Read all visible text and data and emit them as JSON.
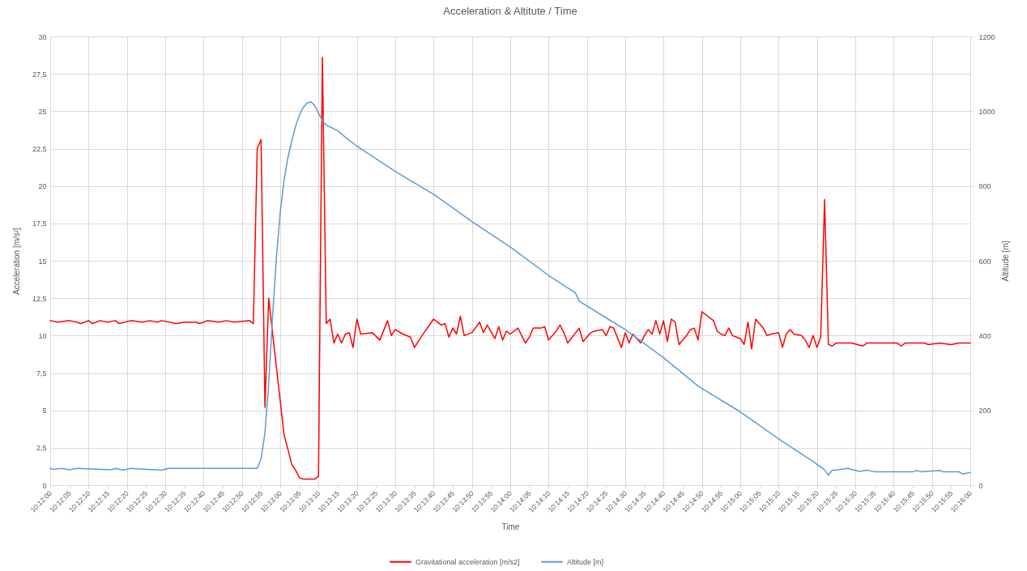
{
  "chart_data": {
    "type": "line",
    "title": "Acceleration & Altitute / Time",
    "xlabel": "Time",
    "ylabel": "Acceleration [m/s²]",
    "y2label": "Altitude [m]",
    "xlim": [
      10.2,
      10.26667
    ],
    "xticks": [
      {
        "value": 10.2,
        "label": "10:12:00"
      },
      {
        "value": 10.20139,
        "label": "10:12:05"
      },
      {
        "value": 10.20278,
        "label": "10:12:10"
      },
      {
        "value": 10.20417,
        "label": "10:12:15"
      },
      {
        "value": 10.20556,
        "label": "10:12:20"
      },
      {
        "value": 10.20694,
        "label": "10:12:25"
      },
      {
        "value": 10.20833,
        "label": "10:12:30"
      },
      {
        "value": 10.20972,
        "label": "10:12:35"
      },
      {
        "value": 10.21111,
        "label": "10:12:40"
      },
      {
        "value": 10.2125,
        "label": "10:12:45"
      },
      {
        "value": 10.21389,
        "label": "10:12:50"
      },
      {
        "value": 10.21528,
        "label": "10:12:55"
      },
      {
        "value": 10.21667,
        "label": "10:13:00"
      },
      {
        "value": 10.21806,
        "label": "10:13:05"
      },
      {
        "value": 10.21944,
        "label": "10:13:10"
      },
      {
        "value": 10.22083,
        "label": "10:13:15"
      },
      {
        "value": 10.22222,
        "label": "10:13:20"
      },
      {
        "value": 10.22361,
        "label": "10:13:25"
      },
      {
        "value": 10.225,
        "label": "10:13:30"
      },
      {
        "value": 10.22639,
        "label": "10:13:35"
      },
      {
        "value": 10.22778,
        "label": "10:13:40"
      },
      {
        "value": 10.22917,
        "label": "10:13:45"
      },
      {
        "value": 10.23056,
        "label": "10:13:50"
      },
      {
        "value": 10.23194,
        "label": "10:13:55"
      },
      {
        "value": 10.23333,
        "label": "10:14:00"
      },
      {
        "value": 10.23472,
        "label": "10:14:05"
      },
      {
        "value": 10.23611,
        "label": "10:14:10"
      },
      {
        "value": 10.2375,
        "label": "10:14:15"
      },
      {
        "value": 10.23889,
        "label": "10:14:20"
      },
      {
        "value": 10.24028,
        "label": "10:14:25"
      },
      {
        "value": 10.24167,
        "label": "10:14:30"
      },
      {
        "value": 10.24306,
        "label": "10:14:35"
      },
      {
        "value": 10.24444,
        "label": "10:14:40"
      },
      {
        "value": 10.24583,
        "label": "10:14:45"
      },
      {
        "value": 10.24722,
        "label": "10:14:50"
      },
      {
        "value": 10.24861,
        "label": "10:14:55"
      },
      {
        "value": 10.25,
        "label": "10:15:00"
      },
      {
        "value": 10.25139,
        "label": "10:15:05"
      },
      {
        "value": 10.25278,
        "label": "10:15:10"
      },
      {
        "value": 10.25417,
        "label": "10:15:15"
      },
      {
        "value": 10.25556,
        "label": "10:15:20"
      },
      {
        "value": 10.25694,
        "label": "10:15:25"
      },
      {
        "value": 10.25833,
        "label": "10:15:30"
      },
      {
        "value": 10.25972,
        "label": "10:15:35"
      },
      {
        "value": 10.26111,
        "label": "10:15:40"
      },
      {
        "value": 10.2625,
        "label": "10:15:45"
      },
      {
        "value": 10.26389,
        "label": "10:15:50"
      },
      {
        "value": 10.26528,
        "label": "10:15:55"
      },
      {
        "value": 10.26667,
        "label": "10:16:00"
      }
    ],
    "ylim": [
      0,
      30
    ],
    "yticks": [
      0,
      {
        "value": 2.5,
        "label": "2,5"
      },
      5,
      {
        "value": 7.5,
        "label": "7,5"
      },
      10,
      {
        "value": 12.5,
        "label": "12,5"
      },
      15,
      {
        "value": 17.5,
        "label": "17,5"
      },
      20,
      {
        "value": 22.5,
        "label": "22,5"
      },
      25,
      {
        "value": 27.5,
        "label": "27,5"
      },
      30
    ],
    "y2lim": [
      0,
      1200
    ],
    "y2ticks": [
      0,
      200,
      400,
      600,
      800,
      1000,
      1200
    ],
    "grid": true,
    "legend": "bottom",
    "series": [
      {
        "name": "Gravitational acceleration [m/s2]",
        "color": "#ff0000",
        "x": [
          10.2,
          10.20056,
          10.20139,
          10.20194,
          10.20222,
          10.20278,
          10.20306,
          10.20361,
          10.20417,
          10.20472,
          10.205,
          10.20583,
          10.20667,
          10.20722,
          10.20778,
          10.20806,
          10.20917,
          10.20972,
          10.21056,
          10.21083,
          10.21139,
          10.21222,
          10.21278,
          10.21333,
          10.21444,
          10.21472,
          10.215,
          10.21528,
          10.21556,
          10.21583,
          10.21611,
          10.21639,
          10.21667,
          10.21694,
          10.21722,
          10.2175,
          10.21778,
          10.21806,
          10.21833,
          10.21917,
          10.21944,
          10.21972,
          10.22,
          10.22028,
          10.22056,
          10.22083,
          10.22111,
          10.22139,
          10.22167,
          10.22194,
          10.22222,
          10.2225,
          10.22333,
          10.22389,
          10.22444,
          10.22472,
          10.225,
          10.22556,
          10.22611,
          10.22639,
          10.22694,
          10.22778,
          10.22806,
          10.22833,
          10.22861,
          10.22889,
          10.22917,
          10.22944,
          10.22972,
          10.23,
          10.23056,
          10.23111,
          10.23139,
          10.23167,
          10.23222,
          10.2325,
          10.23278,
          10.23306,
          10.23333,
          10.23389,
          10.23444,
          10.23472,
          10.235,
          10.23556,
          10.23583,
          10.23611,
          10.23667,
          10.23694,
          10.23722,
          10.2375,
          10.23833,
          10.23861,
          10.23917,
          10.23944,
          10.24,
          10.24028,
          10.24056,
          10.24083,
          10.24139,
          10.24167,
          10.24194,
          10.24222,
          10.24278,
          10.24306,
          10.24333,
          10.24361,
          10.24389,
          10.24417,
          10.24444,
          10.24472,
          10.245,
          10.24528,
          10.24556,
          10.24611,
          10.24639,
          10.24667,
          10.24694,
          10.24722,
          10.2475,
          10.24806,
          10.24833,
          10.24861,
          10.24889,
          10.24917,
          10.24944,
          10.24972,
          10.25,
          10.25028,
          10.25056,
          10.25083,
          10.25111,
          10.25167,
          10.25194,
          10.25222,
          10.25278,
          10.25306,
          10.25333,
          10.25361,
          10.25389,
          10.25444,
          10.25472,
          10.255,
          10.25528,
          10.25556,
          10.25583,
          10.25611,
          10.25639,
          10.25667,
          10.25694,
          10.25806,
          10.25889,
          10.25917,
          10.26139,
          10.26167,
          10.26194,
          10.26333,
          10.26361,
          10.26444,
          10.26528,
          10.26583,
          10.26667
        ],
        "values": [
          11.0,
          10.9,
          11.0,
          10.9,
          10.8,
          11.0,
          10.8,
          11.0,
          10.9,
          11.0,
          10.8,
          11.0,
          10.9,
          11.0,
          10.9,
          11.0,
          10.8,
          10.9,
          10.9,
          10.8,
          11.0,
          10.9,
          11.0,
          10.9,
          11.0,
          10.8,
          22.5,
          23.1,
          5.2,
          12.5,
          10.2,
          7.9,
          5.6,
          3.4,
          2.4,
          1.4,
          1.0,
          0.5,
          0.4,
          0.4,
          0.6,
          28.6,
          10.8,
          11.1,
          9.5,
          10.1,
          9.5,
          10.1,
          10.2,
          9.2,
          11.1,
          10.1,
          10.2,
          9.7,
          11.0,
          10.0,
          10.4,
          10.1,
          9.9,
          9.2,
          10.0,
          11.1,
          10.9,
          10.7,
          10.8,
          9.9,
          10.5,
          10.1,
          11.3,
          10.0,
          10.2,
          10.9,
          10.2,
          10.7,
          9.8,
          10.6,
          9.7,
          10.3,
          10.1,
          10.5,
          9.5,
          9.9,
          10.5,
          10.5,
          10.6,
          9.7,
          10.3,
          10.7,
          10.2,
          9.5,
          10.5,
          9.6,
          10.2,
          10.3,
          10.4,
          10.0,
          10.6,
          10.5,
          9.2,
          10.2,
          9.5,
          10.1,
          9.5,
          10.0,
          10.4,
          10.1,
          11.0,
          10.1,
          11.0,
          9.6,
          11.1,
          10.9,
          9.4,
          10.0,
          10.4,
          10.5,
          9.7,
          11.6,
          11.4,
          11.0,
          10.3,
          10.1,
          10.0,
          10.5,
          10.0,
          9.9,
          9.8,
          9.4,
          10.9,
          9.1,
          11.1,
          10.5,
          10.0,
          10.1,
          10.2,
          9.2,
          10.1,
          10.4,
          10.1,
          10.0,
          9.7,
          9.2,
          10.0,
          9.2,
          9.9,
          19.1,
          9.4,
          9.3,
          9.5,
          9.5,
          9.3,
          9.5,
          9.5,
          9.3,
          9.5,
          9.5,
          9.4,
          9.5,
          9.4,
          9.5,
          9.5
        ]
      },
      {
        "name": "Altitude [m]",
        "color": "#5b9bd5",
        "axis": "y2",
        "x": [
          10.2,
          10.20028,
          10.20083,
          10.20139,
          10.20194,
          10.20444,
          10.20472,
          10.20528,
          10.20583,
          10.20806,
          10.20861,
          10.215,
          10.21528,
          10.21556,
          10.21583,
          10.21611,
          10.21639,
          10.21667,
          10.21694,
          10.21722,
          10.2175,
          10.21778,
          10.21806,
          10.21833,
          10.21861,
          10.21889,
          10.21917,
          10.21944,
          10.21972,
          10.22,
          10.22028,
          10.22083,
          10.22167,
          10.22222,
          10.225,
          10.22778,
          10.23056,
          10.23333,
          10.23611,
          10.23806,
          10.23833,
          10.24167,
          10.24444,
          10.24694,
          10.25,
          10.25278,
          10.25528,
          10.25611,
          10.25639,
          10.25667,
          10.25694,
          10.25778,
          10.25861,
          10.25917,
          10.25972,
          10.2625,
          10.26278,
          10.26306,
          10.26444,
          10.26472,
          10.26583,
          10.26611,
          10.26667
        ],
        "values": [
          45,
          42,
          45,
          41,
          45,
          41,
          45,
          40,
          45,
          40,
          45,
          45,
          70,
          140,
          270,
          450,
          610,
          730,
          815,
          875,
          920,
          960,
          990,
          1010,
          1022,
          1025,
          1015,
          995,
          975,
          963,
          958,
          948,
          922,
          907,
          839,
          778,
          705,
          637,
          561,
          514,
          492,
          416,
          341,
          265,
          196,
          124,
          63,
          41,
          27,
          40,
          40,
          45,
          37,
          40,
          36,
          36,
          39,
          36,
          39,
          36,
          36,
          30,
          34
        ]
      }
    ]
  }
}
